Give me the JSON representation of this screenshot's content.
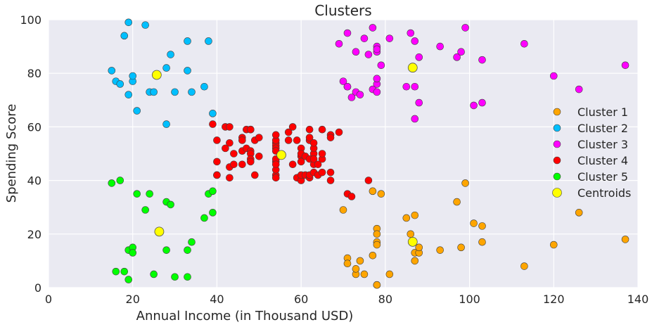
{
  "chart_data": {
    "type": "scatter",
    "title": "Clusters",
    "xlabel": "Annual Income (in Thousand USD)",
    "ylabel": "Spending Score",
    "xlim": [
      0,
      140
    ],
    "ylim": [
      0,
      100
    ],
    "xticks": [
      "0",
      "20",
      "40",
      "60",
      "80",
      "100",
      "120",
      "140"
    ],
    "yticks": [
      "0",
      "20",
      "40",
      "60",
      "80",
      "100"
    ],
    "grid": true,
    "legend_position": "center-right",
    "series": [
      {
        "name": "Cluster 1",
        "color": "#ffa500",
        "points": [
          [
            70,
            29
          ],
          [
            71,
            11
          ],
          [
            71,
            9
          ],
          [
            73,
            5
          ],
          [
            73,
            7
          ],
          [
            74,
            10
          ],
          [
            75,
            5
          ],
          [
            77,
            36
          ],
          [
            77,
            12
          ],
          [
            78,
            22
          ],
          [
            78,
            20
          ],
          [
            78,
            17
          ],
          [
            78,
            16
          ],
          [
            78,
            1
          ],
          [
            78,
            1
          ],
          [
            79,
            35
          ],
          [
            81,
            5
          ],
          [
            85,
            26
          ],
          [
            86,
            20
          ],
          [
            87,
            27
          ],
          [
            87,
            13
          ],
          [
            87,
            10
          ],
          [
            88,
            13
          ],
          [
            88,
            15
          ],
          [
            93,
            14
          ],
          [
            97,
            32
          ],
          [
            98,
            15
          ],
          [
            99,
            39
          ],
          [
            101,
            24
          ],
          [
            103,
            17
          ],
          [
            103,
            23
          ],
          [
            113,
            8
          ],
          [
            120,
            16
          ],
          [
            126,
            28
          ],
          [
            137,
            18
          ]
        ]
      },
      {
        "name": "Cluster 2",
        "color": "#00bfff",
        "points": [
          [
            15,
            81
          ],
          [
            16,
            77
          ],
          [
            17,
            76
          ],
          [
            18,
            94
          ],
          [
            19,
            72
          ],
          [
            19,
            99
          ],
          [
            20,
            77
          ],
          [
            20,
            79
          ],
          [
            21,
            66
          ],
          [
            23,
            98
          ],
          [
            24,
            73
          ],
          [
            25,
            73
          ],
          [
            28,
            82
          ],
          [
            28,
            61
          ],
          [
            29,
            87
          ],
          [
            30,
            73
          ],
          [
            33,
            81
          ],
          [
            33,
            92
          ],
          [
            34,
            73
          ],
          [
            37,
            75
          ],
          [
            38,
            92
          ],
          [
            39,
            65
          ]
        ]
      },
      {
        "name": "Cluster 3",
        "color": "#ff00ff",
        "points": [
          [
            69,
            91
          ],
          [
            70,
            77
          ],
          [
            71,
            95
          ],
          [
            71,
            75
          ],
          [
            71,
            75
          ],
          [
            72,
            71
          ],
          [
            73,
            88
          ],
          [
            73,
            73
          ],
          [
            74,
            72
          ],
          [
            75,
            93
          ],
          [
            76,
            87
          ],
          [
            77,
            97
          ],
          [
            77,
            74
          ],
          [
            78,
            90
          ],
          [
            78,
            88
          ],
          [
            78,
            76
          ],
          [
            78,
            89
          ],
          [
            78,
            78
          ],
          [
            78,
            73
          ],
          [
            79,
            83
          ],
          [
            81,
            93
          ],
          [
            85,
            75
          ],
          [
            86,
            95
          ],
          [
            87,
            63
          ],
          [
            87,
            75
          ],
          [
            87,
            92
          ],
          [
            88,
            86
          ],
          [
            88,
            69
          ],
          [
            93,
            90
          ],
          [
            97,
            86
          ],
          [
            98,
            88
          ],
          [
            99,
            97
          ],
          [
            101,
            68
          ],
          [
            103,
            85
          ],
          [
            103,
            69
          ],
          [
            113,
            91
          ],
          [
            120,
            79
          ],
          [
            126,
            74
          ],
          [
            137,
            83
          ]
        ]
      },
      {
        "name": "Cluster 4",
        "color": "#ff0000",
        "points": [
          [
            39,
            61
          ],
          [
            40,
            55
          ],
          [
            40,
            47
          ],
          [
            40,
            42
          ],
          [
            40,
            42
          ],
          [
            42,
            52
          ],
          [
            42,
            60
          ],
          [
            43,
            54
          ],
          [
            43,
            60
          ],
          [
            43,
            45
          ],
          [
            43,
            41
          ],
          [
            44,
            50
          ],
          [
            44,
            46
          ],
          [
            46,
            51
          ],
          [
            46,
            46
          ],
          [
            46,
            56
          ],
          [
            46,
            55
          ],
          [
            47,
            52
          ],
          [
            47,
            59
          ],
          [
            48,
            51
          ],
          [
            48,
            59
          ],
          [
            48,
            50
          ],
          [
            48,
            48
          ],
          [
            48,
            59
          ],
          [
            48,
            47
          ],
          [
            49,
            55
          ],
          [
            49,
            42
          ],
          [
            50,
            49
          ],
          [
            50,
            56
          ],
          [
            54,
            47
          ],
          [
            54,
            54
          ],
          [
            54,
            53
          ],
          [
            54,
            48
          ],
          [
            54,
            52
          ],
          [
            54,
            42
          ],
          [
            54,
            51
          ],
          [
            54,
            55
          ],
          [
            54,
            41
          ],
          [
            54,
            44
          ],
          [
            54,
            57
          ],
          [
            54,
            46
          ],
          [
            57,
            58
          ],
          [
            57,
            55
          ],
          [
            58,
            60
          ],
          [
            58,
            46
          ],
          [
            59,
            55
          ],
          [
            59,
            41
          ],
          [
            60,
            49
          ],
          [
            60,
            40
          ],
          [
            60,
            42
          ],
          [
            60,
            52
          ],
          [
            60,
            47
          ],
          [
            60,
            50
          ],
          [
            61,
            42
          ],
          [
            61,
            49
          ],
          [
            62,
            41
          ],
          [
            62,
            48
          ],
          [
            62,
            59
          ],
          [
            62,
            55
          ],
          [
            62,
            56
          ],
          [
            62,
            42
          ],
          [
            63,
            50
          ],
          [
            63,
            46
          ],
          [
            63,
            43
          ],
          [
            63,
            48
          ],
          [
            63,
            52
          ],
          [
            63,
            54
          ],
          [
            64,
            42
          ],
          [
            64,
            46
          ],
          [
            65,
            48
          ],
          [
            65,
            50
          ],
          [
            65,
            43
          ],
          [
            65,
            59
          ],
          [
            67,
            43
          ],
          [
            67,
            57
          ],
          [
            67,
            56
          ],
          [
            67,
            40
          ],
          [
            69,
            58
          ],
          [
            71,
            35
          ],
          [
            72,
            34
          ],
          [
            76,
            40
          ]
        ]
      },
      {
        "name": "Cluster 5",
        "color": "#00ff00",
        "points": [
          [
            15,
            39
          ],
          [
            16,
            6
          ],
          [
            17,
            40
          ],
          [
            18,
            6
          ],
          [
            19,
            3
          ],
          [
            19,
            14
          ],
          [
            20,
            15
          ],
          [
            20,
            13
          ],
          [
            21,
            35
          ],
          [
            23,
            29
          ],
          [
            24,
            35
          ],
          [
            25,
            5
          ],
          [
            28,
            14
          ],
          [
            28,
            32
          ],
          [
            29,
            31
          ],
          [
            30,
            4
          ],
          [
            33,
            4
          ],
          [
            33,
            14
          ],
          [
            34,
            17
          ],
          [
            37,
            26
          ],
          [
            38,
            35
          ],
          [
            39,
            36
          ],
          [
            39,
            28
          ]
        ]
      }
    ],
    "centroids": {
      "name": "Centroids",
      "color": "#ffff00",
      "points": [
        [
          86.5,
          17.1
        ],
        [
          25.7,
          79.4
        ],
        [
          86.5,
          82.1
        ],
        [
          55.3,
          49.5
        ],
        [
          26.3,
          20.9
        ]
      ]
    }
  }
}
